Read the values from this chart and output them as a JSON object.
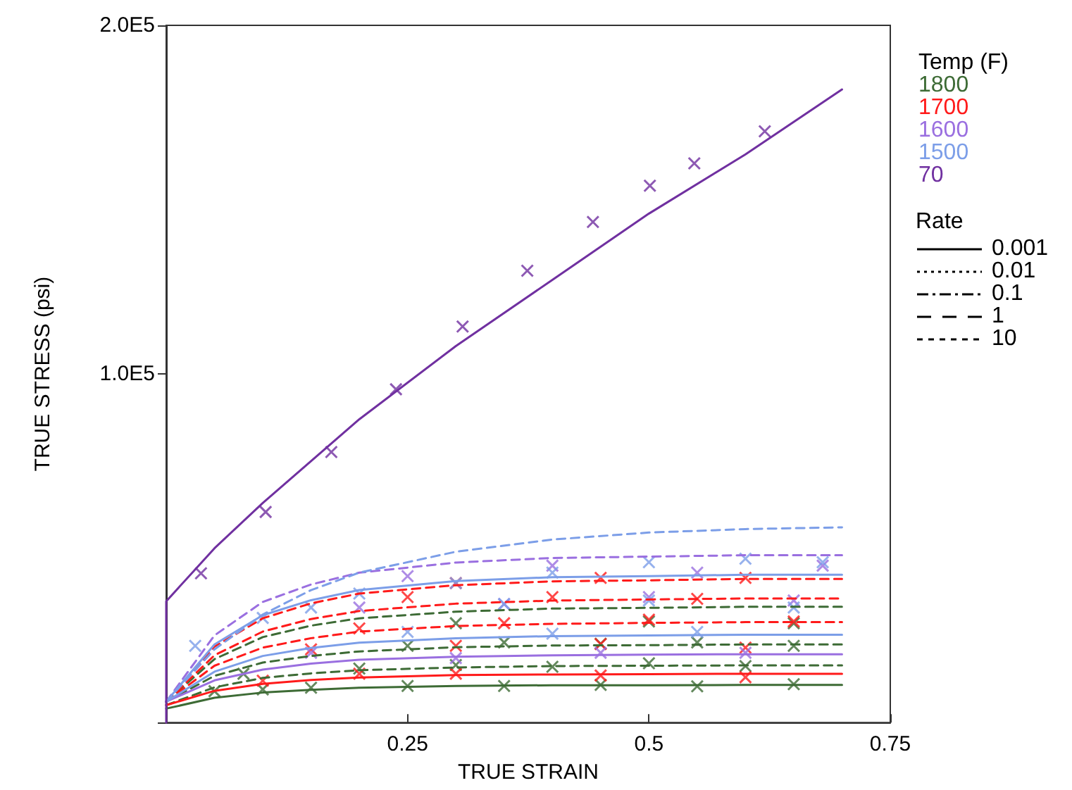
{
  "chart_data": {
    "type": "line",
    "xlabel": "TRUE STRAIN",
    "ylabel": "TRUE STRESS (psi)",
    "legend_title": "Temp (F)",
    "annotations": [
      "Rate",
      "0.001",
      "0.01",
      "0.1",
      "1",
      "10"
    ],
    "xlim": [
      0,
      0.75
    ],
    "xticks": [
      0.25,
      0.5,
      0.75
    ],
    "ylim": [
      0,
      200000
    ],
    "yticks": [
      {
        "value": 0,
        "label": null
      },
      {
        "value": 100000,
        "label": "1.0E5"
      },
      {
        "value": 200000,
        "label": "2.0E5"
      }
    ],
    "grid": false,
    "legend": "right",
    "marker": "none",
    "x": [
      0,
      0.05,
      0.1,
      0.15,
      0.2,
      0.3,
      0.4,
      0.5,
      0.6,
      0.7
    ],
    "series": [
      {
        "color": "#3d6b35",
        "line_style": "solid",
        "values": [
          4000,
          7100,
          8600,
          9400,
          10000,
          10500,
          10700,
          10700,
          10800,
          10800
        ]
      },
      {
        "color": "#3d6b35",
        "line_style": "dashed",
        "values": [
          5000,
          10100,
          12800,
          14100,
          15000,
          15800,
          16200,
          16300,
          16400,
          16400
        ]
      },
      {
        "color": "#3d6b35",
        "line_style": "dashed",
        "values": [
          6000,
          13400,
          17200,
          19100,
          20400,
          21600,
          22100,
          22200,
          22400,
          22400
        ]
      },
      {
        "color": "#3d6b35",
        "line_style": "dashed",
        "values": [
          6000,
          18200,
          24500,
          27800,
          29900,
          31800,
          32700,
          32900,
          33200,
          33200
        ]
      },
      {
        "color": "#ff1a1a",
        "line_style": "solid",
        "values": [
          5000,
          9100,
          11100,
          12200,
          12900,
          13600,
          13800,
          13900,
          14000,
          14000
        ]
      },
      {
        "color": "#ff1a1a",
        "line_style": "dashed",
        "values": [
          6000,
          16300,
          21500,
          24200,
          26100,
          27700,
          28300,
          28600,
          28800,
          28800
        ]
      },
      {
        "color": "#ff1a1a",
        "line_style": "dashed",
        "values": [
          6000,
          19300,
          26100,
          29700,
          32000,
          34100,
          35000,
          35300,
          35600,
          35600
        ]
      },
      {
        "color": "#ff1a1a",
        "line_style": "dashed",
        "values": [
          6000,
          21800,
          29900,
          34200,
          37000,
          39400,
          40500,
          40800,
          41200,
          41200
        ]
      },
      {
        "color": "#9a6fe0",
        "line_style": "solid",
        "values": [
          6000,
          12100,
          15200,
          16900,
          18000,
          18900,
          19300,
          19500,
          19600,
          19600
        ]
      },
      {
        "color": "#9a6fe0",
        "line_style": "dashed",
        "values": [
          6000,
          25000,
          34600,
          39600,
          43000,
          45900,
          47200,
          47600,
          48000,
          48000
        ]
      },
      {
        "color": "#7c9ee8",
        "line_style": "solid",
        "values": [
          6000,
          14600,
          19100,
          21400,
          22900,
          24200,
          24800,
          25000,
          25200,
          25200
        ]
      },
      {
        "color": "#7c9ee8",
        "line_style": "solid",
        "values": [
          6000,
          22400,
          30800,
          35100,
          38000,
          40600,
          41700,
          42000,
          42400,
          42400
        ]
      },
      {
        "color": "#7c9ee8",
        "line_style": "dashed",
        "values": [
          6000,
          21000,
          31000,
          38000,
          43000,
          49000,
          52500,
          54500,
          55500,
          56000
        ]
      },
      {
        "color": "#7030a0",
        "line_style": "solid",
        "x": [
          0,
          0,
          0.05,
          0.1,
          0.2,
          0.3,
          0.4,
          0.5,
          0.6,
          0.7
        ],
        "values": [
          0,
          34800,
          50000,
          63000,
          87000,
          108000,
          127000,
          146000,
          163000,
          181600
        ]
      },
      {
        "type": "scatter",
        "name": "1800",
        "marker": "cross",
        "color": "#3d6b35",
        "x": [
          0.05,
          0.1,
          0.15,
          0.25,
          0.35,
          0.45,
          0.55,
          0.65,
          0.08,
          0.2,
          0.3,
          0.4,
          0.5,
          0.6,
          0.25,
          0.35,
          0.45,
          0.55,
          0.65,
          0.3,
          0.5,
          0.65
        ],
        "values": [
          9000,
          9500,
          10000,
          10500,
          10500,
          10800,
          10400,
          11000,
          14000,
          15500,
          16500,
          16000,
          17000,
          16200,
          22000,
          23000,
          22600,
          23000,
          22000,
          28500,
          29000,
          28500
        ]
      },
      {
        "type": "scatter",
        "name": "1700",
        "marker": "cross",
        "color": "#ff1a1a",
        "x": [
          0.1,
          0.2,
          0.3,
          0.45,
          0.6,
          0.15,
          0.3,
          0.45,
          0.6,
          0.2,
          0.35,
          0.5,
          0.65,
          0.25,
          0.4,
          0.55,
          0.3,
          0.45,
          0.6
        ],
        "values": [
          12000,
          14000,
          14000,
          13500,
          13000,
          21000,
          22000,
          22500,
          21500,
          27000,
          28500,
          29500,
          29000,
          36000,
          36000,
          35500,
          40000,
          41500,
          41500
        ]
      },
      {
        "type": "scatter",
        "name": "1600",
        "marker": "cross",
        "color": "#9a6fe0",
        "x": [
          0.15,
          0.3,
          0.45,
          0.6,
          0.2,
          0.35,
          0.5,
          0.65,
          0.25,
          0.4,
          0.55,
          0.68
        ],
        "values": [
          20000,
          18500,
          20000,
          20000,
          33000,
          34000,
          36000,
          35000,
          42000,
          45000,
          43000,
          45000
        ]
      },
      {
        "type": "scatter",
        "name": "1500",
        "marker": "cross",
        "color": "#7c9ee8",
        "x": [
          0.03,
          0.1,
          0.15,
          0.2,
          0.3,
          0.4,
          0.5,
          0.6,
          0.68,
          0.25,
          0.4,
          0.55,
          0.35,
          0.5,
          0.65
        ],
        "values": [
          22000,
          30000,
          33000,
          37000,
          40000,
          43000,
          46000,
          47000,
          46000,
          26000,
          25500,
          26000,
          34000,
          35000,
          33000
        ]
      },
      {
        "type": "scatter",
        "name": "70",
        "marker": "cross",
        "color": "#7030a0",
        "x": [
          0.036,
          0.103,
          0.171,
          0.238,
          0.307,
          0.374,
          0.442,
          0.501,
          0.547,
          0.62
        ],
        "values": [
          42800,
          60400,
          77600,
          95600,
          113600,
          129600,
          143600,
          154000,
          160400,
          169600
        ]
      }
    ]
  }
}
